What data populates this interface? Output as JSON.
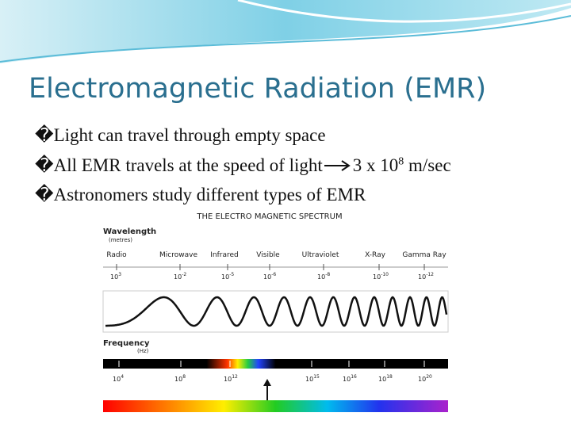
{
  "title": "Electromagnetic Radiation (EMR)",
  "bullets": [
    {
      "marker": "�",
      "text": "Light can travel through empty space"
    },
    {
      "marker": "�",
      "text": "All EMR travels at the speed of light",
      "value": "3 x 10",
      "exp": "8",
      "unit": " m/sec"
    },
    {
      "marker": "�",
      "text": "Astronomers study different types of EMR"
    }
  ],
  "spectrum": {
    "title": "THE ELECTRO MAGNETIC SPECTRUM",
    "wavelength_label": "Wavelength",
    "wavelength_unit": "(metres)",
    "bands": [
      "Radio",
      "Microwave",
      "Infrared",
      "Visible",
      "Ultraviolet",
      "X-Ray",
      "Gamma Ray"
    ],
    "wavelength_ticks": [
      {
        "base": "10",
        "exp": "3"
      },
      {
        "base": "10",
        "exp": "-2"
      },
      {
        "base": "10",
        "exp": "-5"
      },
      {
        "base": "10",
        "exp": "-6"
      },
      {
        "base": "10",
        "exp": "-8"
      },
      {
        "base": "10",
        "exp": "-10"
      },
      {
        "base": "10",
        "exp": "-12"
      }
    ],
    "frequency_label": "Frequency",
    "frequency_unit": "(Hz)",
    "frequency_ticks": [
      {
        "base": "10",
        "exp": "4"
      },
      {
        "base": "10",
        "exp": "8"
      },
      {
        "base": "10",
        "exp": "12"
      },
      {
        "base": "10",
        "exp": "15"
      },
      {
        "base": "10",
        "exp": "16"
      },
      {
        "base": "10",
        "exp": "18"
      },
      {
        "base": "10",
        "exp": "20"
      }
    ]
  }
}
